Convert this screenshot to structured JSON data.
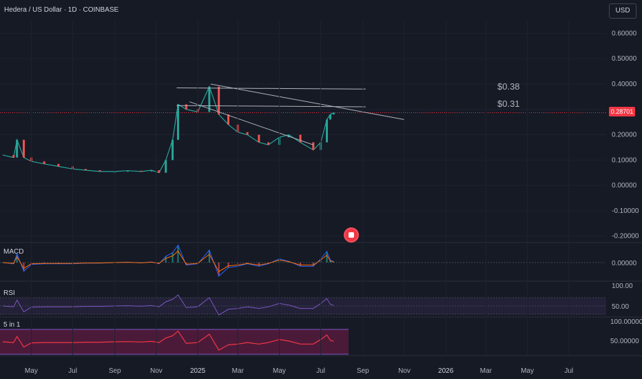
{
  "header": {
    "title": "Hedera / US Dollar · 1D · COINBASE",
    "currency_button": "USD"
  },
  "colors": {
    "background": "#161a25",
    "up": "#26a69a",
    "down": "#ef5350",
    "price_line": "#f23645",
    "trendline": "#b2b5be",
    "macd_line": "#2962ff",
    "signal_line": "#ff6d00",
    "rsi_line": "#7e57c2",
    "rsi_ma": "#f9a825",
    "five_in_one": "#f23645",
    "five_in_one_fill": "#7a1b4a"
  },
  "price_pane": {
    "last_price_label": "0.28701",
    "levels": [
      {
        "label": "$0.38",
        "value": 0.38
      },
      {
        "label": "$0.31",
        "value": 0.31
      }
    ]
  },
  "macd_pane": {
    "title": "MACD",
    "ytick": "0.00000"
  },
  "rsi_pane": {
    "title": "RSI",
    "yticks": [
      "100.00",
      "50.00"
    ]
  },
  "five_in_one_pane": {
    "title": "5 in 1",
    "yticks": [
      "100.00000",
      "50.00000"
    ]
  },
  "chart_data": {
    "type": "line",
    "title": "Hedera / US Dollar · 1D · COINBASE",
    "ylim": [
      -0.22,
      0.65
    ],
    "yticks": [
      0.6,
      0.5,
      0.4,
      0.3,
      0.2,
      0.1,
      0.0,
      -0.1,
      -0.2
    ],
    "ytick_labels": [
      "0.60000",
      "0.50000",
      "0.40000",
      "",
      "0.20000",
      "0.10000",
      "0.00000",
      "-0.10000",
      "-0.20000"
    ],
    "xtick_labels": [
      "May",
      "Jul",
      "Sep",
      "Nov",
      "2025",
      "Mar",
      "May",
      "Jul",
      "Sep",
      "Nov",
      "2026",
      "Mar",
      "May",
      "Jul"
    ],
    "xtick_dates": [
      "2024-05-01",
      "2024-07-01",
      "2024-09-01",
      "2024-11-01",
      "2025-01-01",
      "2025-03-01",
      "2025-05-01",
      "2025-07-01",
      "2025-09-01",
      "2025-11-01",
      "2026-01-01",
      "2026-03-01",
      "2026-05-01",
      "2026-07-01"
    ],
    "series": [
      {
        "x": [
          "2024-03-20",
          "2024-04-05",
          "2024-04-10",
          "2024-04-20",
          "2024-05-01",
          "2024-05-20",
          "2024-06-10",
          "2024-07-01",
          "2024-07-20",
          "2024-08-10",
          "2024-09-01",
          "2024-09-20",
          "2024-10-10",
          "2024-10-25",
          "2024-11-05",
          "2024-11-15",
          "2024-11-25",
          "2024-12-03",
          "2024-12-15",
          "2025-01-01",
          "2025-01-18",
          "2025-02-01",
          "2025-02-15",
          "2025-03-01",
          "2025-03-15",
          "2025-04-01",
          "2025-04-15",
          "2025-05-01",
          "2025-05-15",
          "2025-06-01",
          "2025-06-20",
          "2025-07-01",
          "2025-07-10",
          "2025-07-15",
          "2025-07-20"
        ],
        "values": [
          0.12,
          0.11,
          0.18,
          0.11,
          0.095,
          0.085,
          0.075,
          0.065,
          0.06,
          0.055,
          0.055,
          0.058,
          0.055,
          0.06,
          0.05,
          0.1,
          0.18,
          0.32,
          0.3,
          0.29,
          0.39,
          0.28,
          0.24,
          0.21,
          0.2,
          0.17,
          0.16,
          0.19,
          0.2,
          0.17,
          0.14,
          0.17,
          0.26,
          0.28,
          0.287
        ]
      }
    ],
    "trendlines": [
      {
        "x": [
          "2024-12-01",
          "2025-09-05"
        ],
        "values": [
          0.385,
          0.38
        ]
      },
      {
        "x": [
          "2024-12-01",
          "2025-09-05"
        ],
        "values": [
          0.315,
          0.31
        ]
      },
      {
        "x": [
          "2025-01-20",
          "2025-11-01"
        ],
        "values": [
          0.4,
          0.26
        ]
      },
      {
        "x": [
          "2024-12-20",
          "2025-06-20"
        ],
        "values": [
          0.33,
          0.16
        ]
      }
    ]
  }
}
